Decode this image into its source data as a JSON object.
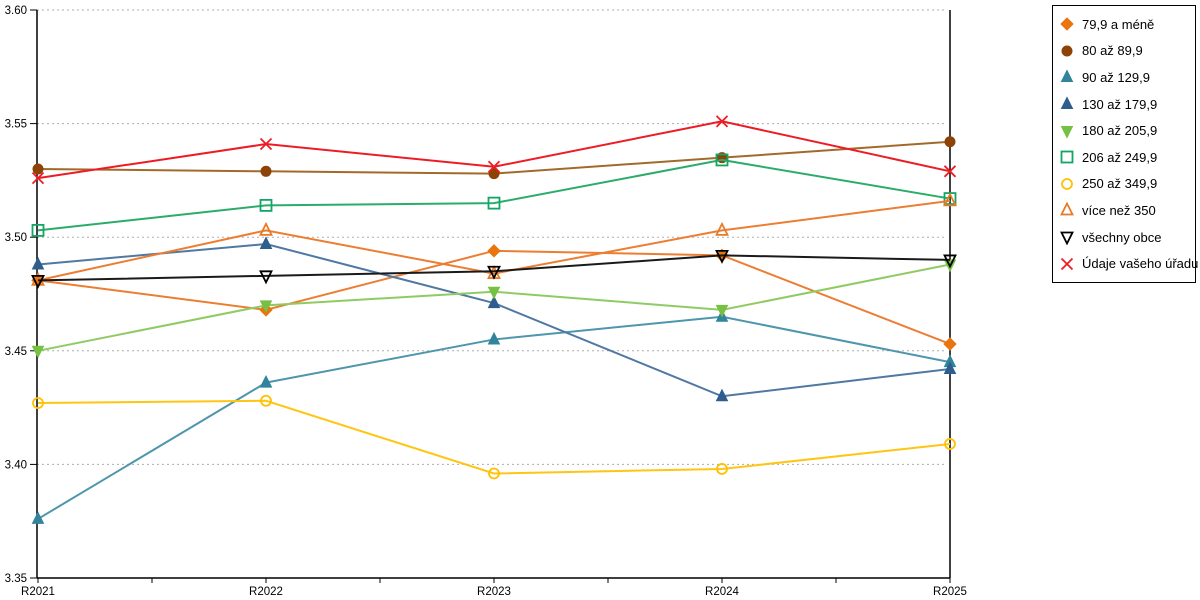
{
  "chart_data": {
    "type": "line",
    "title": "",
    "xlabel": "",
    "ylabel": "",
    "categories": [
      "R2021",
      "R2022",
      "R2023",
      "R2024",
      "R2025"
    ],
    "ylim": [
      3.35,
      3.6
    ],
    "ytick_labels": [
      "3.35",
      "3.40",
      "3.45",
      "3.50",
      "3.55",
      "3.60"
    ],
    "grid": "horizontal dotted gray",
    "legend_position": "right, boxed",
    "axis_color": "#000000",
    "grid_color": "#ADADAD",
    "series": [
      {
        "name": "79,9 a méně",
        "marker": "diamond",
        "fill": "filled",
        "color": "#E8750E",
        "line_color": "#ED7D31",
        "values": [
          3.481,
          3.468,
          3.494,
          3.492,
          3.453
        ]
      },
      {
        "name": "80 až 89,9",
        "marker": "circle",
        "fill": "filled",
        "color": "#8F4206",
        "line_color": "#A26A2A",
        "values": [
          3.53,
          3.529,
          3.528,
          3.535,
          3.542
        ]
      },
      {
        "name": "90 až 129,9",
        "marker": "triangle-up",
        "fill": "filled",
        "color": "#31849B",
        "line_color": "#4E96AC",
        "values": [
          3.376,
          3.436,
          3.455,
          3.465,
          3.445
        ]
      },
      {
        "name": "130 až 179,9",
        "marker": "triangle-up",
        "fill": "filled",
        "color": "#2E5E8E",
        "line_color": "#4F78A2",
        "values": [
          3.488,
          3.497,
          3.471,
          3.43,
          3.442
        ]
      },
      {
        "name": "180 až 205,9",
        "marker": "triangle-down",
        "fill": "filled",
        "color": "#76C043",
        "line_color": "#8FCB63",
        "values": [
          3.45,
          3.47,
          3.476,
          3.468,
          3.488
        ]
      },
      {
        "name": "206 až 249,9",
        "marker": "square",
        "fill": "open",
        "color": "#12A563",
        "line_color": "#2BAC6B",
        "values": [
          3.503,
          3.514,
          3.515,
          3.534,
          3.517
        ]
      },
      {
        "name": "250 až 349,9",
        "marker": "circle",
        "fill": "open",
        "color": "#FFC000",
        "line_color": "#FFC513",
        "values": [
          3.427,
          3.428,
          3.396,
          3.398,
          3.409
        ]
      },
      {
        "name": "více než 350",
        "marker": "triangle-up",
        "fill": "open",
        "color": "#E87A28",
        "line_color": "#ED7D31",
        "values": [
          3.481,
          3.503,
          3.484,
          3.503,
          3.516
        ]
      },
      {
        "name": "všechny obce",
        "marker": "triangle-down",
        "fill": "open",
        "color": "#000000",
        "line_color": "#1A1A1A",
        "values": [
          3.481,
          3.483,
          3.485,
          3.492,
          3.49
        ]
      },
      {
        "name": "Údaje vašeho úřadu",
        "marker": "x",
        "fill": "open",
        "color": "#ED1C24",
        "line_color": "#ED1C24",
        "values": [
          3.526,
          3.541,
          3.531,
          3.551,
          3.529
        ]
      }
    ]
  }
}
